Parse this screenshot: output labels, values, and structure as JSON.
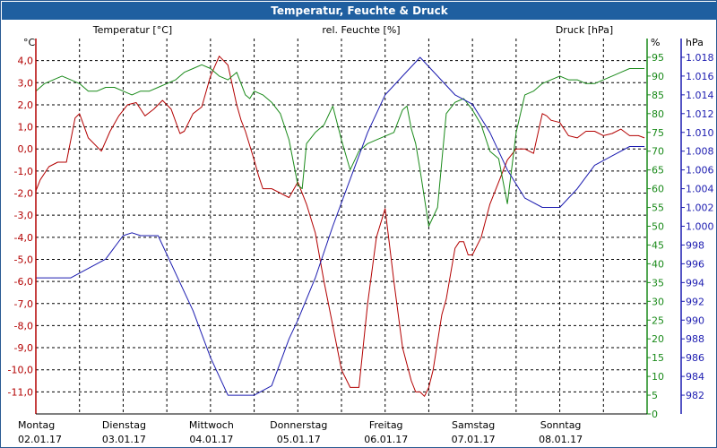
{
  "window": {
    "title": "Temperatur, Feuchte & Druck"
  },
  "colors": {
    "temperature": "#b30000",
    "humidity": "#1a8a1a",
    "pressure": "#1c1cb0",
    "grid": "#000000",
    "title_bg": "#1f5fa0"
  },
  "chart_data": {
    "type": "line",
    "title": "Temperatur, Feuchte & Druck",
    "grid": true,
    "x_axis": {
      "range": [
        "02.01.17 00:00",
        "08.01.17 24:00"
      ],
      "ticks": [
        {
          "day": "Montag",
          "date": "02.01.17"
        },
        {
          "day": "Dienstag",
          "date": "03.01.17"
        },
        {
          "day": "Mittwoch",
          "date": "04.01.17"
        },
        {
          "day": "Donnerstag",
          "date": "05.01.17"
        },
        {
          "day": "Freitag",
          "date": "06.01.17"
        },
        {
          "day": "Samstag",
          "date": "07.01.17"
        },
        {
          "day": "Sonntag",
          "date": "08.01.17"
        }
      ]
    },
    "axes": {
      "temperature": {
        "label": "Temperatur [°C]",
        "unit": "°C",
        "range": [
          -12,
          5
        ],
        "ticks": [
          "4,0",
          "3,0",
          "2,0",
          "1,0",
          "0,0",
          "-1,0",
          "-2,0",
          "-3,0",
          "-4,0",
          "-5,0",
          "-6,0",
          "-7,0",
          "-8,0",
          "-9,0",
          "-10,0",
          "-11,0"
        ]
      },
      "humidity": {
        "label": "rel. Feuchte [%]",
        "unit": "%",
        "range": [
          0,
          100
        ],
        "ticks": [
          "95",
          "90",
          "85",
          "80",
          "75",
          "70",
          "65",
          "60",
          "55",
          "50",
          "45",
          "40",
          "35",
          "30",
          "25",
          "20",
          "15",
          "10",
          "5",
          "0"
        ]
      },
      "pressure": {
        "label": "Druck [hPa]",
        "unit": "hPa",
        "range": [
          980,
          1020
        ],
        "ticks": [
          "1.018",
          "1.016",
          "1.014",
          "1.012",
          "1.010",
          "1.008",
          "1.006",
          "1.004",
          "1.002",
          "1.000",
          "998",
          "996",
          "994",
          "992",
          "990",
          "988",
          "986",
          "984",
          "982"
        ]
      }
    },
    "series": [
      {
        "name": "Temperatur [°C]",
        "axis": "temperature",
        "x": [
          0,
          0.05,
          0.15,
          0.25,
          0.35,
          0.45,
          0.5,
          0.6,
          0.75,
          0.85,
          0.95,
          1.05,
          1.15,
          1.25,
          1.35,
          1.45,
          1.55,
          1.65,
          1.7,
          1.8,
          1.9,
          2.0,
          2.1,
          2.2,
          2.3,
          2.35,
          2.4,
          2.5,
          2.55,
          2.6,
          2.7,
          2.8,
          2.9,
          3.0,
          3.1,
          3.2,
          3.3,
          3.4,
          3.5,
          3.6,
          3.7,
          3.8,
          3.9,
          4.0,
          4.1,
          4.2,
          4.3,
          4.35,
          4.4,
          4.45,
          4.5,
          4.55,
          4.65,
          4.7,
          4.8,
          4.85,
          4.9,
          4.95,
          5.0,
          5.1,
          5.2,
          5.3,
          5.35,
          5.4,
          5.5,
          5.6,
          5.7,
          5.8,
          5.85,
          5.9,
          6.0,
          6.1,
          6.2,
          6.3,
          6.4,
          6.5,
          6.6,
          6.7,
          6.8,
          6.9,
          6.97
        ],
        "y": [
          -1.9,
          -1.4,
          -0.8,
          -0.6,
          -0.6,
          1.4,
          1.6,
          0.5,
          -0.1,
          0.8,
          1.5,
          2.0,
          2.1,
          1.5,
          1.8,
          2.2,
          1.8,
          0.7,
          0.8,
          1.6,
          1.9,
          3.3,
          4.2,
          3.8,
          2.0,
          1.3,
          0.8,
          -0.5,
          -1.2,
          -1.8,
          -1.8,
          -2.0,
          -2.2,
          -1.5,
          -2.5,
          -3.8,
          -6.0,
          -8.0,
          -10.0,
          -10.8,
          -10.8,
          -7.0,
          -4.0,
          -2.7,
          -6.0,
          -9.0,
          -10.5,
          -11.0,
          -11.0,
          -11.2,
          -10.8,
          -10.0,
          -7.5,
          -6.8,
          -4.5,
          -4.2,
          -4.2,
          -4.8,
          -4.8,
          -4.0,
          -2.5,
          -1.5,
          -1.0,
          -0.5,
          0.0,
          0.0,
          -0.2,
          1.6,
          1.5,
          1.3,
          1.2,
          0.6,
          0.5,
          0.8,
          0.8,
          0.6,
          0.7,
          0.9,
          0.6,
          0.6,
          0.5
        ]
      },
      {
        "name": "rel. Feuchte [%]",
        "axis": "humidity",
        "x": [
          0,
          0.1,
          0.2,
          0.3,
          0.4,
          0.5,
          0.6,
          0.7,
          0.8,
          0.9,
          1.0,
          1.1,
          1.2,
          1.3,
          1.4,
          1.5,
          1.6,
          1.7,
          1.8,
          1.9,
          2.0,
          2.1,
          2.2,
          2.3,
          2.4,
          2.45,
          2.5,
          2.6,
          2.7,
          2.8,
          2.9,
          3.0,
          3.05,
          3.1,
          3.2,
          3.3,
          3.4,
          3.5,
          3.6,
          3.7,
          3.8,
          3.9,
          4.0,
          4.1,
          4.2,
          4.25,
          4.3,
          4.35,
          4.4,
          4.5,
          4.6,
          4.7,
          4.8,
          4.9,
          5.0,
          5.1,
          5.2,
          5.3,
          5.4,
          5.5,
          5.6,
          5.7,
          5.8,
          5.9,
          6.0,
          6.1,
          6.2,
          6.3,
          6.4,
          6.5,
          6.6,
          6.7,
          6.8,
          6.97
        ],
        "y": [
          86,
          88,
          89,
          90,
          89,
          88,
          86,
          86,
          87,
          87,
          86,
          85,
          86,
          86,
          87,
          88,
          89,
          91,
          92,
          93,
          92,
          90,
          89,
          91,
          85,
          84,
          86,
          85,
          83,
          80,
          73,
          61,
          60,
          72,
          75,
          77,
          82,
          73,
          65,
          70,
          72,
          73,
          74,
          75,
          81,
          82,
          76,
          72,
          65,
          50,
          55,
          80,
          83,
          84,
          81,
          77,
          70,
          68,
          56,
          75,
          85,
          86,
          88,
          89,
          90,
          89,
          89,
          88,
          88,
          89,
          90,
          91,
          92,
          92
        ]
      },
      {
        "name": "Druck [hPa]",
        "axis": "pressure",
        "x": [
          0,
          0.2,
          0.4,
          0.6,
          0.8,
          1.0,
          1.1,
          1.2,
          1.4,
          1.6,
          1.8,
          2.0,
          2.2,
          2.35,
          2.5,
          2.7,
          2.8,
          2.9,
          3.0,
          3.2,
          3.4,
          3.6,
          3.8,
          4.0,
          4.2,
          4.4,
          4.6,
          4.8,
          5.0,
          5.2,
          5.4,
          5.6,
          5.8,
          6.0,
          6.2,
          6.4,
          6.6,
          6.8,
          6.97
        ],
        "y": [
          994.5,
          994.5,
          994.5,
          995.5,
          996.5,
          999.0,
          999.3,
          999.0,
          999.0,
          995.0,
          991.0,
          986.0,
          982.0,
          982.0,
          982.0,
          983.0,
          985.5,
          988.0,
          990.0,
          994.5,
          1000.0,
          1005.0,
          1010.0,
          1014.0,
          1016.0,
          1018.0,
          1016.0,
          1014.0,
          1013.0,
          1010.0,
          1006.0,
          1003.0,
          1002.0,
          1002.0,
          1004.0,
          1006.5,
          1007.5,
          1008.5,
          1008.5
        ]
      }
    ]
  }
}
